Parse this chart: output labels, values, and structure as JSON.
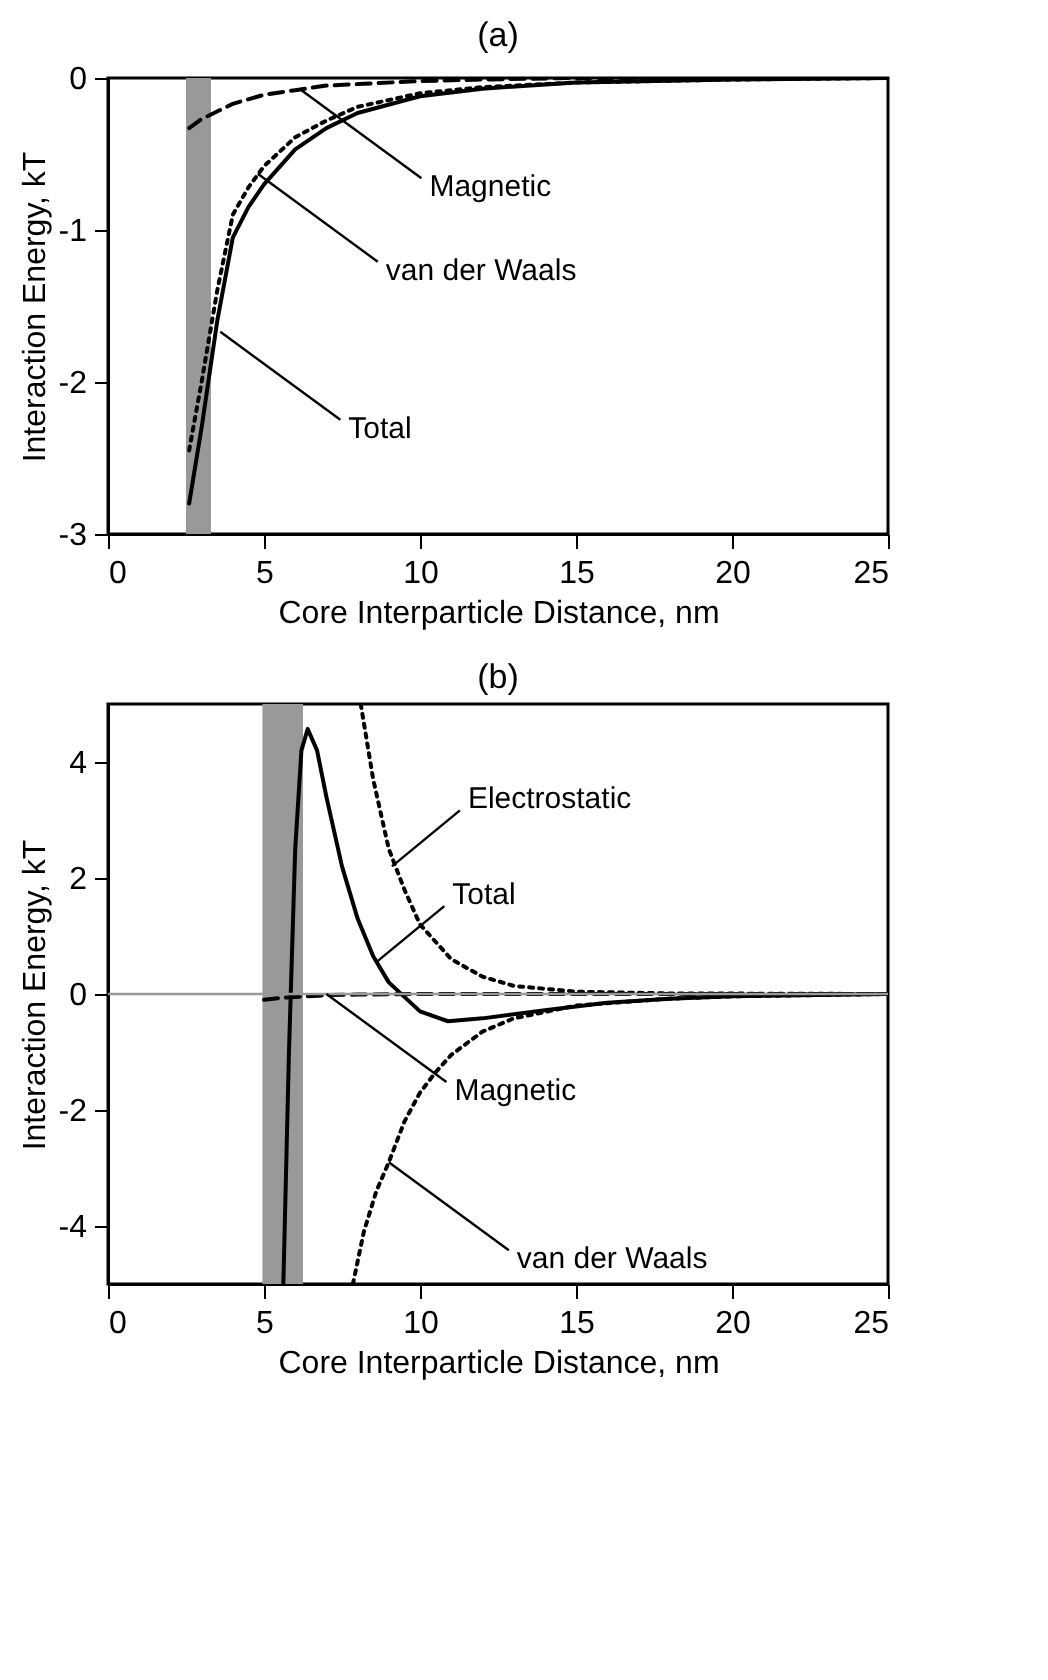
{
  "chart_data": [
    {
      "type": "line",
      "title": "(a)",
      "xlabel": "Core Interparticle Distance, nm",
      "ylabel": "Interaction Energy, kT",
      "xlim": [
        0,
        25
      ],
      "ylim": [
        -3,
        0
      ],
      "xticks": [
        0,
        5,
        10,
        15,
        20,
        25
      ],
      "yticks": [
        -3,
        -2,
        -1,
        0
      ],
      "bands": [
        {
          "axis": "x",
          "from": 2.5,
          "to": 3.3,
          "color": "#999999"
        }
      ],
      "series": [
        {
          "color": "#000000",
          "line_style": "dashed",
          "x": [
            2.6,
            3,
            4,
            5,
            6,
            7,
            8,
            10,
            12,
            15,
            25
          ],
          "values": [
            -0.33,
            -0.27,
            -0.17,
            -0.11,
            -0.08,
            -0.05,
            -0.04,
            -0.02,
            -0.01,
            0,
            0
          ]
        },
        {
          "color": "#000000",
          "line_style": "dotted",
          "x": [
            2.6,
            3,
            3.5,
            4,
            4.5,
            5,
            6,
            7,
            8,
            10,
            12,
            15,
            20,
            25
          ],
          "values": [
            -2.45,
            -2.0,
            -1.4,
            -0.9,
            -0.72,
            -0.58,
            -0.39,
            -0.28,
            -0.19,
            -0.1,
            -0.06,
            -0.03,
            -0.01,
            0
          ]
        },
        {
          "color": "#000000",
          "line_style": "solid",
          "x": [
            2.6,
            3,
            3.5,
            4,
            4.5,
            5,
            6,
            7,
            8,
            10,
            12,
            15,
            20,
            25
          ],
          "values": [
            -2.8,
            -2.3,
            -1.6,
            -1.05,
            -0.85,
            -0.7,
            -0.47,
            -0.33,
            -0.23,
            -0.12,
            -0.07,
            -0.03,
            -0.01,
            0
          ]
        }
      ],
      "annotations": [
        {
          "text": "Magnetic",
          "x": 6.2,
          "y": -0.08
        },
        {
          "text": "van der Waals",
          "x": 4.8,
          "y": -0.63
        },
        {
          "text": "Total",
          "x": 3.6,
          "y": -1.67
        }
      ]
    },
    {
      "type": "line",
      "title": "(b)",
      "xlabel": "Core Interparticle Distance, nm",
      "ylabel": "Interaction Energy, kT",
      "xlim": [
        0,
        25
      ],
      "ylim": [
        -5,
        5
      ],
      "xticks": [
        0,
        5,
        10,
        15,
        20,
        25
      ],
      "yticks": [
        -4,
        -2,
        0,
        2,
        4
      ],
      "bands": [
        {
          "axis": "x",
          "from": 4.95,
          "to": 6.25,
          "color": "#999999"
        }
      ],
      "ref_lines": [
        {
          "axis": "y",
          "value": 0,
          "color": "#999999"
        }
      ],
      "series": [
        {
          "color": "#000000",
          "line_style": "dotted",
          "x": [
            8.1,
            8.5,
            9,
            9.5,
            10,
            11,
            12,
            13,
            15,
            18,
            25
          ],
          "values": [
            5,
            3.7,
            2.5,
            1.8,
            1.2,
            0.6,
            0.3,
            0.14,
            0.04,
            0.01,
            0
          ]
        },
        {
          "color": "#000000",
          "line_style": "dashed",
          "x": [
            5,
            5.5,
            6,
            7,
            8,
            10,
            25
          ],
          "values": [
            -0.1,
            -0.07,
            -0.05,
            -0.02,
            -0.01,
            0,
            0
          ]
        },
        {
          "color": "#000000",
          "line_style": "dotted",
          "x": [
            7.85,
            8.2,
            8.6,
            9,
            9.5,
            10,
            10.5,
            11,
            12,
            13,
            15,
            18,
            20,
            25
          ],
          "values": [
            -5,
            -4.1,
            -3.4,
            -2.9,
            -2.2,
            -1.7,
            -1.35,
            -1.05,
            -0.65,
            -0.42,
            -0.2,
            -0.08,
            -0.04,
            0
          ]
        },
        {
          "color": "#000000",
          "line_style": "solid",
          "x": [
            5.62,
            5.8,
            6,
            6.2,
            6.4,
            6.7,
            7,
            7.5,
            8,
            8.5,
            9,
            9.5,
            10,
            10.9,
            12,
            14,
            16,
            18,
            20,
            25
          ],
          "values": [
            -5,
            -1,
            2.5,
            4.2,
            4.57,
            4.2,
            3.4,
            2.2,
            1.3,
            0.65,
            0.2,
            -0.05,
            -0.3,
            -0.47,
            -0.42,
            -0.28,
            -0.15,
            -0.08,
            -0.04,
            0
          ]
        }
      ],
      "annotations": [
        {
          "text": "Electrostatic",
          "x": 9.1,
          "y": 2.2
        },
        {
          "text": "Total",
          "x": 8.6,
          "y": 0.55
        },
        {
          "text": "Magnetic",
          "x": 7,
          "y": 0
        },
        {
          "text": "van der Waals",
          "x": 9,
          "y": -2.9
        }
      ]
    }
  ]
}
